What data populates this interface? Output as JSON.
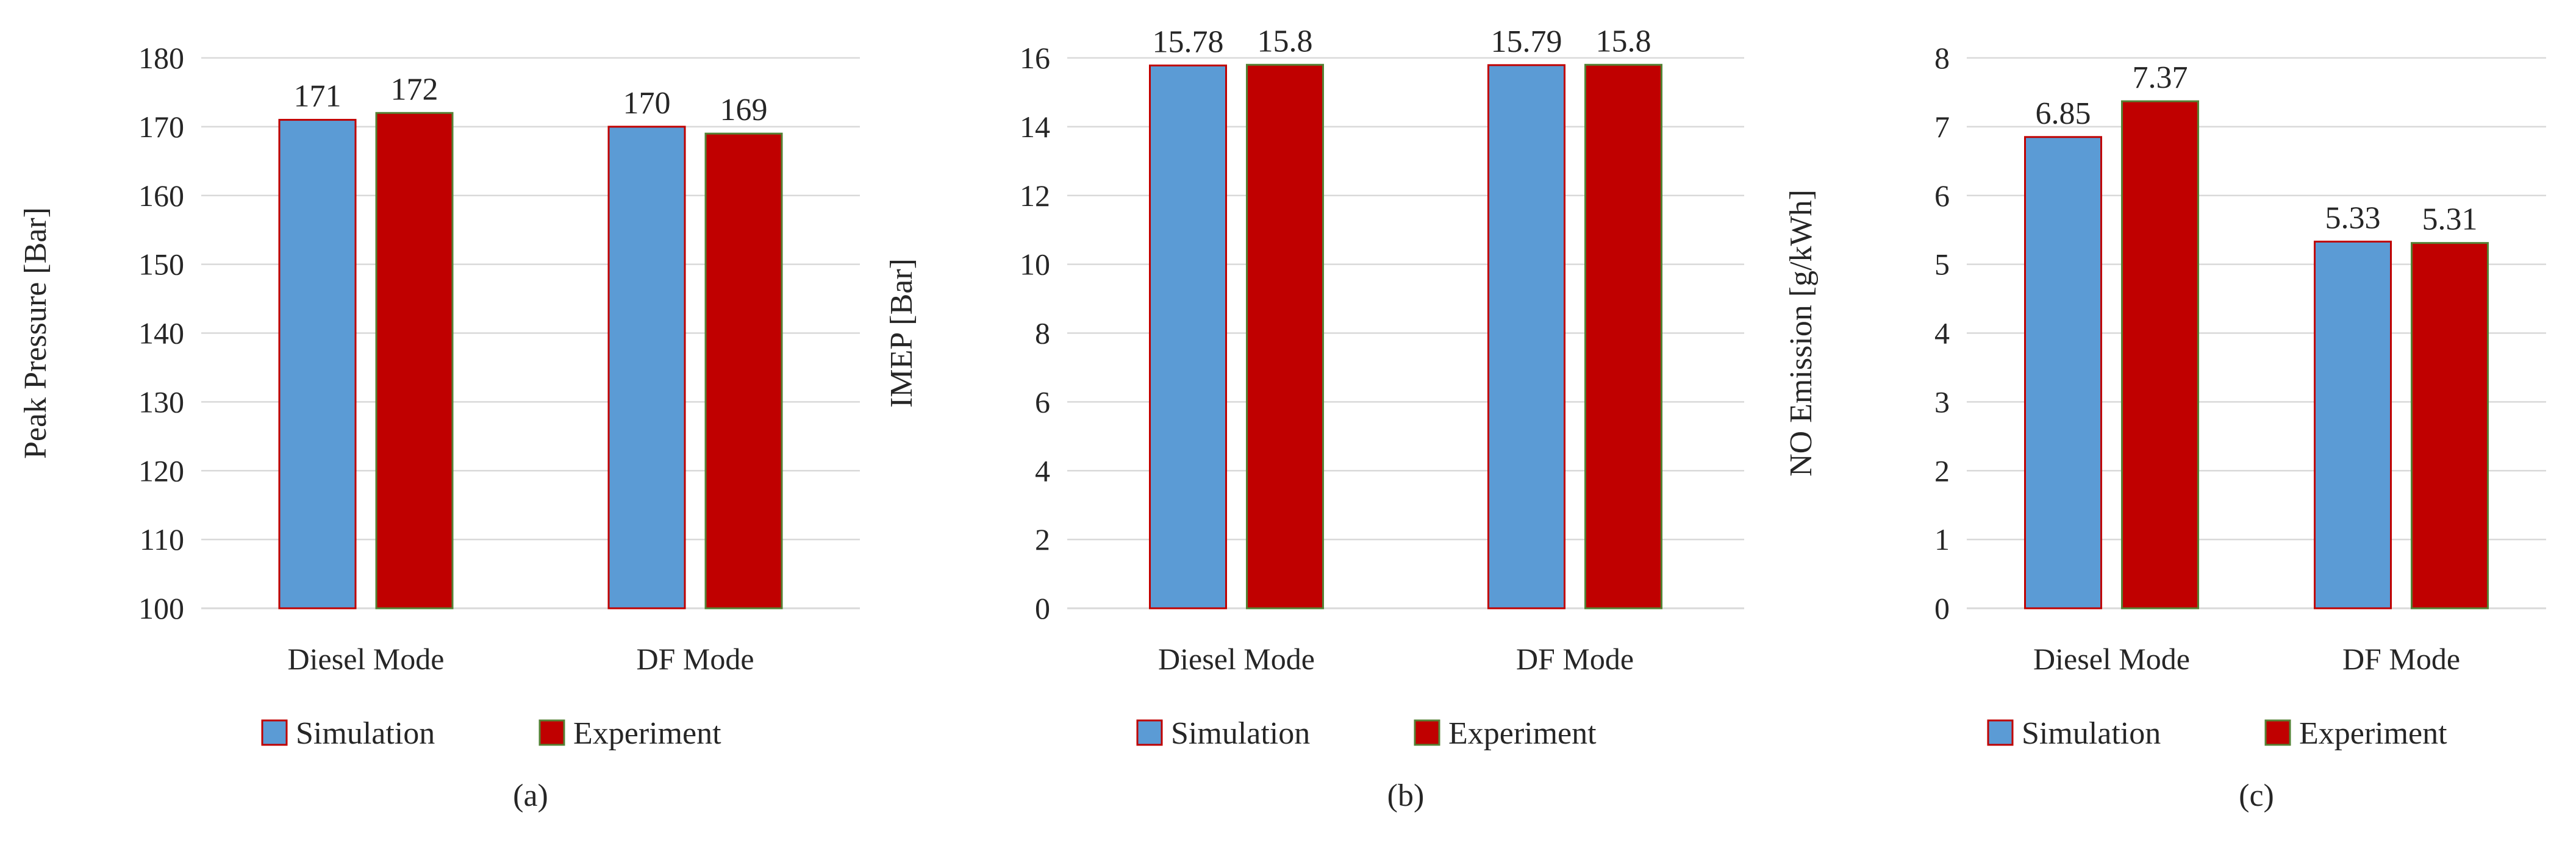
{
  "colors": {
    "simulation_fill": "#5B9BD5",
    "simulation_border": "#C00000",
    "experiment_fill": "#C00000",
    "experiment_border": "#548235",
    "grid": "#D9D9D9",
    "text": "#262626"
  },
  "chart_data": [
    {
      "type": "bar",
      "panel_label": "(a)",
      "title": "",
      "xlabel": "",
      "ylabel": "Peak Pressure [Bar]",
      "ylim": [
        100,
        180
      ],
      "yticks": [
        "100",
        "110",
        "120",
        "130",
        "140",
        "150",
        "160",
        "170",
        "180"
      ],
      "categories": [
        "Diesel Mode",
        "DF Mode"
      ],
      "series": [
        {
          "name": "Simulation",
          "values": [
            171,
            170
          ],
          "labels": [
            "171",
            "170"
          ]
        },
        {
          "name": "Experiment",
          "values": [
            172,
            169
          ],
          "labels": [
            "172",
            "169"
          ]
        }
      ],
      "grid": true,
      "legend": "bottom"
    },
    {
      "type": "bar",
      "panel_label": "(b)",
      "title": "",
      "xlabel": "",
      "ylabel": "IMEP [Bar]",
      "ylim": [
        0,
        16
      ],
      "yticks": [
        "0",
        "2",
        "4",
        "6",
        "8",
        "10",
        "12",
        "14",
        "16"
      ],
      "categories": [
        "Diesel Mode",
        "DF Mode"
      ],
      "series": [
        {
          "name": "Simulation",
          "values": [
            15.78,
            15.79
          ],
          "labels": [
            "15.78",
            "15.79"
          ]
        },
        {
          "name": "Experiment",
          "values": [
            15.8,
            15.8
          ],
          "labels": [
            "15.8",
            "15.8"
          ]
        }
      ],
      "grid": true,
      "legend": "bottom"
    },
    {
      "type": "bar",
      "panel_label": "(c)",
      "title": "",
      "xlabel": "",
      "ylabel": "NO Emission [g/kWh]",
      "ylim": [
        0,
        8
      ],
      "yticks": [
        "0",
        "1",
        "2",
        "3",
        "4",
        "5",
        "6",
        "7",
        "8"
      ],
      "categories": [
        "Diesel Mode",
        "DF Mode"
      ],
      "series": [
        {
          "name": "Simulation",
          "values": [
            6.85,
            5.33
          ],
          "labels": [
            "6.85",
            "5.33"
          ]
        },
        {
          "name": "Experiment",
          "values": [
            7.37,
            5.31
          ],
          "labels": [
            "7.37",
            "5.31"
          ]
        }
      ],
      "grid": true,
      "legend": "bottom"
    }
  ]
}
